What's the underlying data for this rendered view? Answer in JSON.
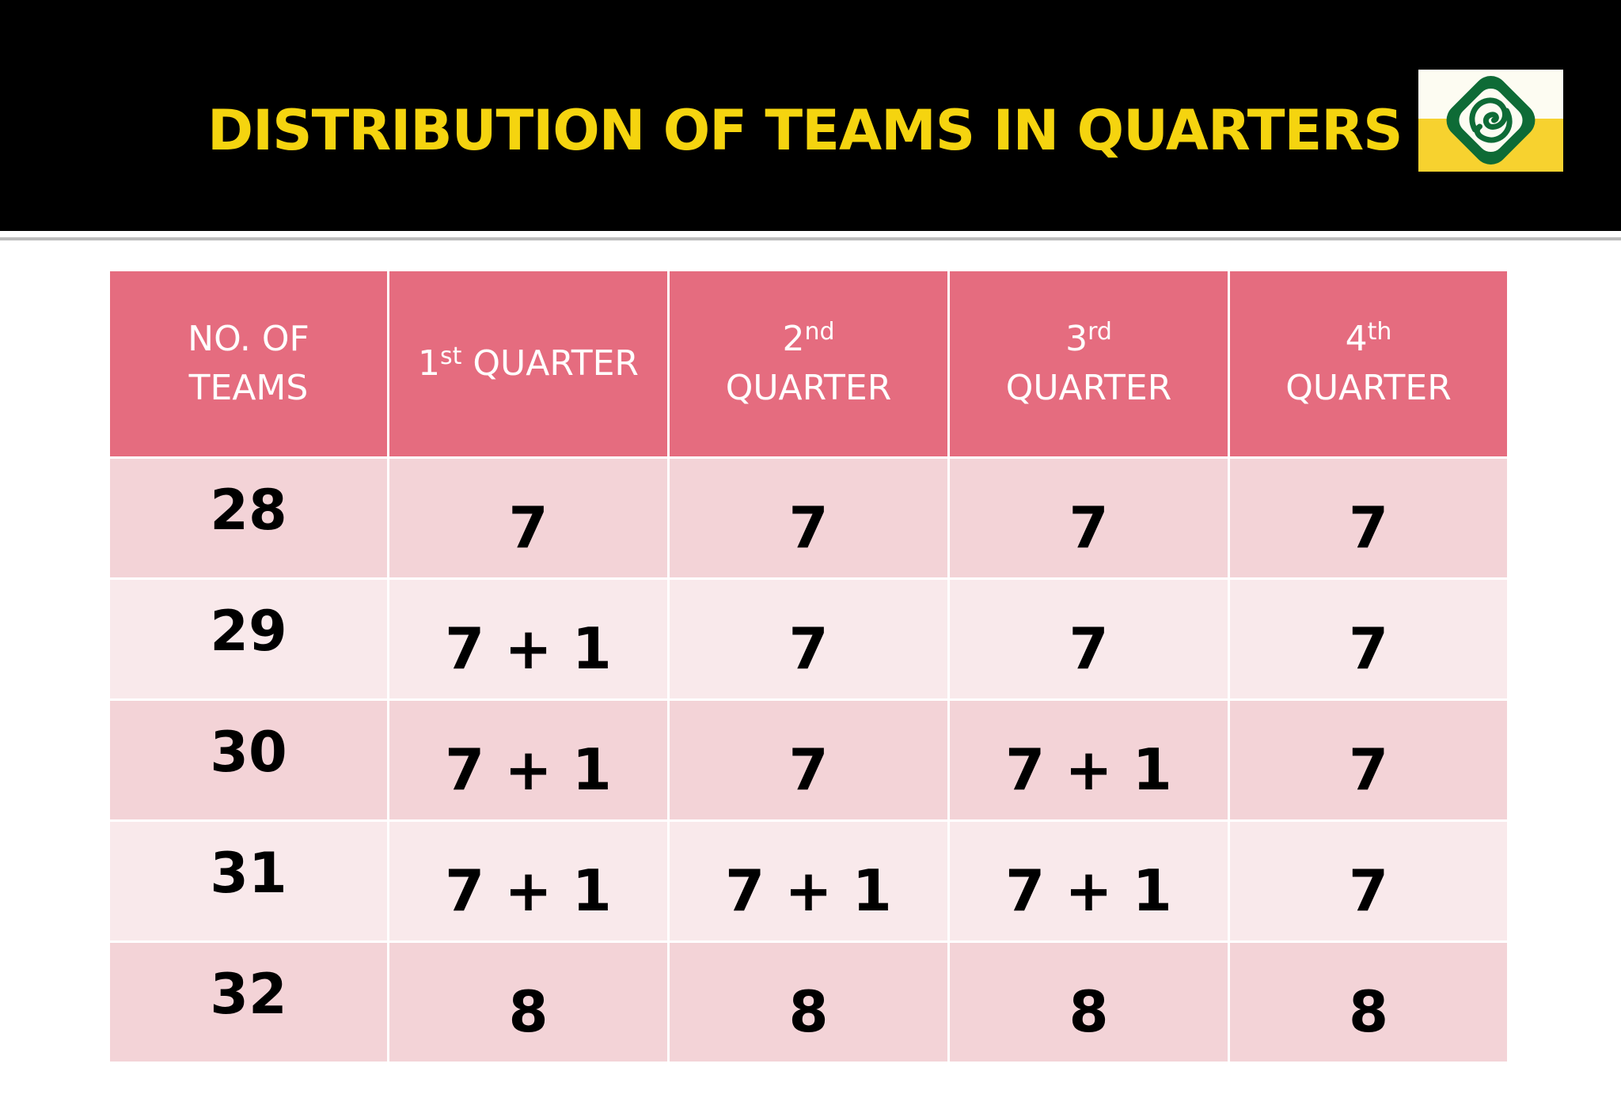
{
  "slide": {
    "title": "DISTRIBUTION OF TEAMS IN QUARTERS",
    "colors": {
      "header_background": "#000000",
      "title_color": "#f5d40f",
      "table_header": "#e56c7f",
      "row_odd": "#f3d3d7",
      "row_even": "#f9e9eb"
    },
    "logo": {
      "icon": "green-emblem-logo-icon"
    }
  },
  "table": {
    "headers": [
      {
        "line1": "NO. OF",
        "line2": "TEAMS"
      },
      {
        "num": "1",
        "sup": "st",
        "word": "QUARTER"
      },
      {
        "num": "2",
        "sup": "nd",
        "word": "QUARTER"
      },
      {
        "num": "3",
        "sup": "rd",
        "word": "QUARTER"
      },
      {
        "num": "4",
        "sup": "th",
        "word": "QUARTER"
      }
    ],
    "rows": [
      [
        "28",
        "7",
        "7",
        "7",
        "7"
      ],
      [
        "29",
        "7 + 1",
        "7",
        "7",
        "7"
      ],
      [
        "30",
        "7 + 1",
        "7",
        "7 + 1",
        "7"
      ],
      [
        "31",
        "7 + 1",
        "7 + 1",
        "7 + 1",
        "7"
      ],
      [
        "32",
        "8",
        "8",
        "8",
        "8"
      ]
    ]
  }
}
